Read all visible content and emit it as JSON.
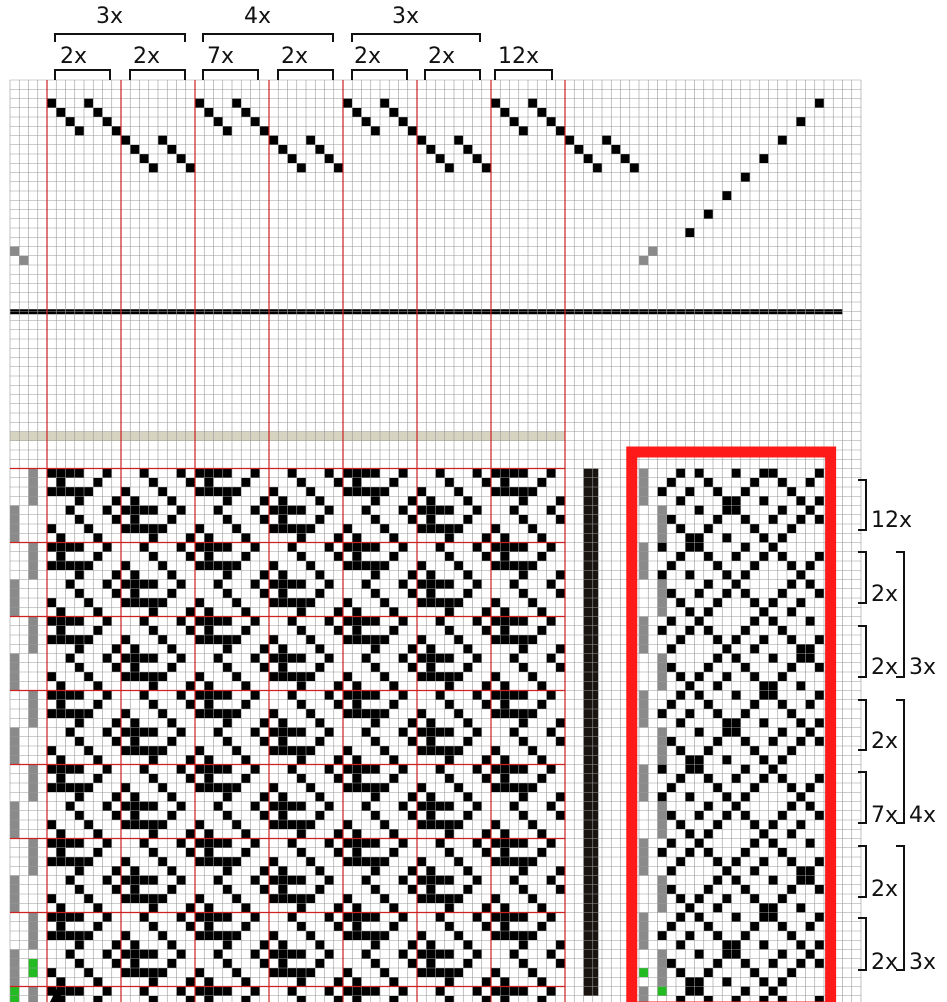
{
  "watermark": "",
  "top_group_labels": [
    "3x",
    "4x",
    "3x"
  ],
  "top_block_labels": [
    "2x",
    "2x",
    "7x",
    "2x",
    "2x",
    "2x",
    "12x"
  ],
  "right_block_labels": [
    "12x",
    "2x",
    "2x",
    "2x",
    "7x",
    "2x",
    "2x"
  ],
  "right_group_labels": [
    "3x",
    "4x",
    "3x"
  ],
  "colors": {
    "grid": "#9a9a9a",
    "block_line": "#cc2222",
    "fill": "#000000",
    "lift": "#8a8a8a",
    "green": "#22bb22",
    "tan": "#d6d3c0",
    "highlight": "#ff1a1a"
  },
  "icons": [
    "up-arrow-icon"
  ]
}
